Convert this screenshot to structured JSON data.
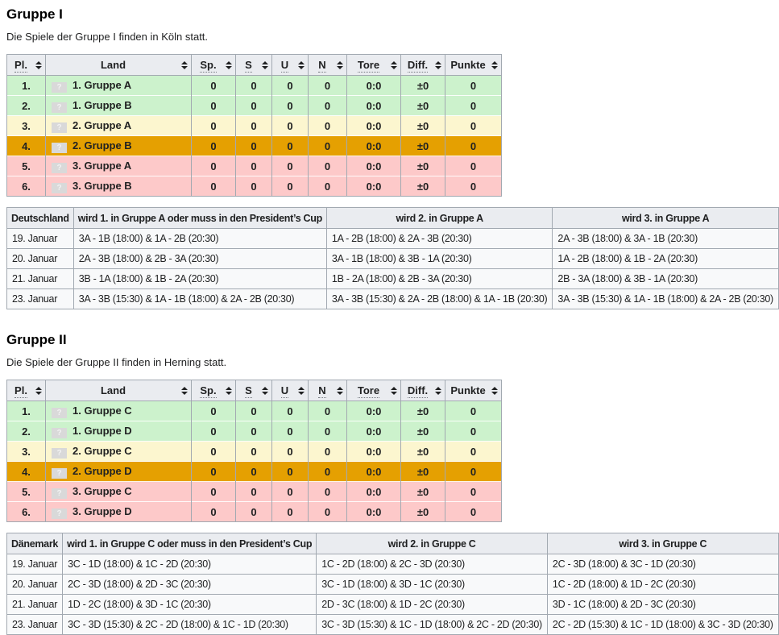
{
  "colors": {
    "header_bg": "#eaecf0",
    "table_bg": "#f8f9fa",
    "border": "#a2a9b1",
    "row_green": "#ccf2cc",
    "row_yellow": "#fcf6cf",
    "row_orange": "#e5a001",
    "row_pink": "#fdc9c9"
  },
  "flag_placeholder": "?",
  "standings_columns": [
    {
      "key": "pl",
      "label": "Pl.",
      "abbr": true
    },
    {
      "key": "land",
      "label": "Land",
      "abbr": false
    },
    {
      "key": "sp",
      "label": "Sp.",
      "abbr": true
    },
    {
      "key": "s",
      "label": "S",
      "abbr": true
    },
    {
      "key": "u",
      "label": "U",
      "abbr": true
    },
    {
      "key": "n",
      "label": "N",
      "abbr": true
    },
    {
      "key": "tore",
      "label": "Tore",
      "abbr": true
    },
    {
      "key": "diff",
      "label": "Diff.",
      "abbr": true
    },
    {
      "key": "punkte",
      "label": "Punkte",
      "abbr": false
    }
  ],
  "sections": [
    {
      "heading": "Gruppe I",
      "intro": "Die Spiele der Gruppe I finden in Köln statt.",
      "standings_rows": [
        {
          "pl": "1.",
          "land": "1. Gruppe A",
          "sp": "0",
          "s": "0",
          "u": "0",
          "n": "0",
          "tore": "0:0",
          "diff": "±0",
          "punkte": "0",
          "color": "green"
        },
        {
          "pl": "2.",
          "land": "1. Gruppe B",
          "sp": "0",
          "s": "0",
          "u": "0",
          "n": "0",
          "tore": "0:0",
          "diff": "±0",
          "punkte": "0",
          "color": "green"
        },
        {
          "pl": "3.",
          "land": "2. Gruppe A",
          "sp": "0",
          "s": "0",
          "u": "0",
          "n": "0",
          "tore": "0:0",
          "diff": "±0",
          "punkte": "0",
          "color": "yellow"
        },
        {
          "pl": "4.",
          "land": "2. Gruppe B",
          "sp": "0",
          "s": "0",
          "u": "0",
          "n": "0",
          "tore": "0:0",
          "diff": "±0",
          "punkte": "0",
          "color": "orange"
        },
        {
          "pl": "5.",
          "land": "3. Gruppe A",
          "sp": "0",
          "s": "0",
          "u": "0",
          "n": "0",
          "tore": "0:0",
          "diff": "±0",
          "punkte": "0",
          "color": "pink"
        },
        {
          "pl": "6.",
          "land": "3. Gruppe B",
          "sp": "0",
          "s": "0",
          "u": "0",
          "n": "0",
          "tore": "0:0",
          "diff": "±0",
          "punkte": "0",
          "color": "pink"
        }
      ],
      "schedule": {
        "headers": [
          "Deutschland",
          "wird 1. in Gruppe A oder muss in den President’s Cup",
          "wird 2. in Gruppe A",
          "wird 3. in Gruppe A"
        ],
        "rows": [
          [
            "19. Januar",
            "3A - 1B (18:00) & 1A - 2B (20:30)",
            "1A - 2B (18:00) & 2A - 3B (20:30)",
            "2A - 3B (18:00) & 3A - 1B (20:30)"
          ],
          [
            "20. Januar",
            "2A - 3B (18:00) & 2B - 3A (20:30)",
            "3A - 1B (18:00) & 3B - 1A (20:30)",
            "1A - 2B (18:00) & 1B - 2A (20:30)"
          ],
          [
            "21. Januar",
            "3B - 1A (18:00) & 1B - 2A (20:30)",
            "1B - 2A (18:00) & 2B - 3A (20:30)",
            "2B - 3A (18:00) & 3B - 1A (20:30)"
          ],
          [
            "23. Januar",
            "3A - 3B (15:30) & 1A - 1B (18:00) & 2A - 2B (20:30)",
            "3A - 3B (15:30) & 2A - 2B (18:00) & 1A - 1B (20:30)",
            "3A - 3B (15:30) & 1A - 1B (18:00) & 2A - 2B (20:30)"
          ]
        ]
      }
    },
    {
      "heading": "Gruppe II",
      "intro": "Die Spiele der Gruppe II finden in Herning statt.",
      "standings_rows": [
        {
          "pl": "1.",
          "land": "1. Gruppe C",
          "sp": "0",
          "s": "0",
          "u": "0",
          "n": "0",
          "tore": "0:0",
          "diff": "±0",
          "punkte": "0",
          "color": "green"
        },
        {
          "pl": "2.",
          "land": "1. Gruppe D",
          "sp": "0",
          "s": "0",
          "u": "0",
          "n": "0",
          "tore": "0:0",
          "diff": "±0",
          "punkte": "0",
          "color": "green"
        },
        {
          "pl": "3.",
          "land": "2. Gruppe C",
          "sp": "0",
          "s": "0",
          "u": "0",
          "n": "0",
          "tore": "0:0",
          "diff": "±0",
          "punkte": "0",
          "color": "yellow"
        },
        {
          "pl": "4.",
          "land": "2. Gruppe D",
          "sp": "0",
          "s": "0",
          "u": "0",
          "n": "0",
          "tore": "0:0",
          "diff": "±0",
          "punkte": "0",
          "color": "orange"
        },
        {
          "pl": "5.",
          "land": "3. Gruppe C",
          "sp": "0",
          "s": "0",
          "u": "0",
          "n": "0",
          "tore": "0:0",
          "diff": "±0",
          "punkte": "0",
          "color": "pink"
        },
        {
          "pl": "6.",
          "land": "3. Gruppe D",
          "sp": "0",
          "s": "0",
          "u": "0",
          "n": "0",
          "tore": "0:0",
          "diff": "±0",
          "punkte": "0",
          "color": "pink"
        }
      ],
      "schedule": {
        "headers": [
          "Dänemark",
          "wird 1. in Gruppe C oder muss in den President’s Cup",
          "wird 2. in Gruppe C",
          "wird 3. in Gruppe C"
        ],
        "rows": [
          [
            "19. Januar",
            "3C - 1D (18:00) & 1C - 2D (20:30)",
            "1C - 2D (18:00) & 2C - 3D (20:30)",
            "2C - 3D (18:00) & 3C - 1D (20:30)"
          ],
          [
            "20. Januar",
            "2C - 3D (18:00) & 2D - 3C (20:30)",
            "3C - 1D (18:00) & 3D - 1C (20:30)",
            "1C - 2D (18:00) & 1D - 2C (20:30)"
          ],
          [
            "21. Januar",
            "1D - 2C (18:00) & 3D - 1C (20:30)",
            "2D - 3C (18:00) & 1D - 2C (20:30)",
            "3D - 1C (18:00) & 2D - 3C (20:30)"
          ],
          [
            "23. Januar",
            "3C - 3D (15:30) & 2C - 2D (18:00) & 1C - 1D (20:30)",
            "3C - 3D (15:30) & 1C - 1D (18:00) & 2C - 2D (20:30)",
            "2C - 2D (15:30) & 1C - 1D (18:00) & 3C - 3D (20:30)"
          ]
        ]
      }
    }
  ]
}
